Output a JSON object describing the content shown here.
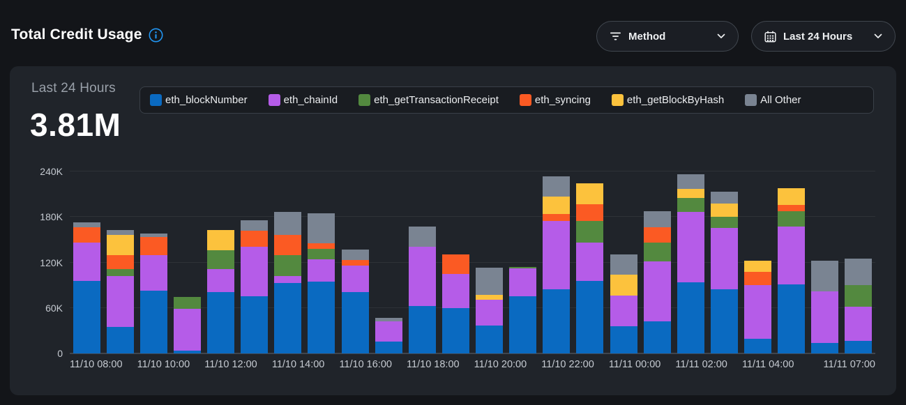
{
  "header": {
    "title": "Total Credit Usage",
    "method_filter_label": "Method",
    "time_filter_label": "Last 24 Hours"
  },
  "summary": {
    "period_label": "Last 24 Hours",
    "total": "3.81M"
  },
  "colors": {
    "info_icon": "#2196f3",
    "page_bg": "#131519",
    "card_bg": "#20242a"
  },
  "chart_data": {
    "type": "stacked_bar",
    "values_unit": "thousands (K) of credits",
    "ylim_thousands": [
      0,
      240
    ],
    "ytick_labels": [
      "0",
      "60K",
      "120K",
      "180K",
      "240K"
    ],
    "grid": "horizontal",
    "legend_position": "top",
    "bar_count": 24,
    "series": [
      {
        "name": "eth_blockNumber",
        "color": "#0a6ac1",
        "values": [
          96,
          35,
          83,
          4,
          81,
          75,
          93,
          95,
          81,
          16,
          63,
          60,
          37,
          75,
          85,
          96,
          36,
          42,
          94,
          85,
          19,
          91,
          14,
          17
        ]
      },
      {
        "name": "eth_chainId",
        "color": "#b55ce8",
        "values": [
          50,
          67,
          47,
          55,
          30,
          66,
          9,
          29,
          35,
          26,
          78,
          45,
          34,
          37,
          90,
          50,
          40,
          79,
          93,
          81,
          71,
          76,
          68,
          45
        ]
      },
      {
        "name": "eth_getTransactionReceipt",
        "color": "#53893f",
        "values": [
          0,
          9,
          0,
          16,
          25,
          0,
          28,
          14,
          0,
          0,
          0,
          0,
          0,
          2,
          0,
          29,
          0,
          25,
          18,
          14,
          0,
          21,
          0,
          28
        ]
      },
      {
        "name": "eth_syncing",
        "color": "#fb5a23",
        "values": [
          20,
          19,
          24,
          0,
          0,
          21,
          26,
          7,
          7,
          0,
          0,
          26,
          0,
          0,
          9,
          22,
          0,
          20,
          0,
          0,
          18,
          8,
          0,
          0
        ]
      },
      {
        "name": "eth_getBlockByHash",
        "color": "#fcc23d",
        "values": [
          0,
          26,
          0,
          0,
          27,
          0,
          0,
          0,
          0,
          0,
          0,
          0,
          6,
          0,
          23,
          27,
          28,
          0,
          12,
          18,
          14,
          22,
          0,
          0
        ]
      },
      {
        "name": "All Other",
        "color": "#7a8492",
        "values": [
          7,
          7,
          4,
          0,
          0,
          14,
          31,
          40,
          14,
          5,
          26,
          0,
          36,
          0,
          27,
          0,
          27,
          22,
          19,
          15,
          0,
          0,
          40,
          35
        ]
      }
    ],
    "x_tick_labels": [
      {
        "slot": 0,
        "label": "11/10 08:00"
      },
      {
        "slot": 2,
        "label": "11/10 10:00"
      },
      {
        "slot": 4,
        "label": "11/10 12:00"
      },
      {
        "slot": 6,
        "label": "11/10 14:00"
      },
      {
        "slot": 8,
        "label": "11/10 16:00"
      },
      {
        "slot": 10,
        "label": "11/10 18:00"
      },
      {
        "slot": 12,
        "label": "11/10 20:00"
      },
      {
        "slot": 14,
        "label": "11/10 22:00"
      },
      {
        "slot": 16,
        "label": "11/11 00:00"
      },
      {
        "slot": 18,
        "label": "11/11 02:00"
      },
      {
        "slot": 20,
        "label": "11/11 04:00"
      },
      {
        "slot": 23,
        "label": "11/11 07:00"
      }
    ]
  }
}
